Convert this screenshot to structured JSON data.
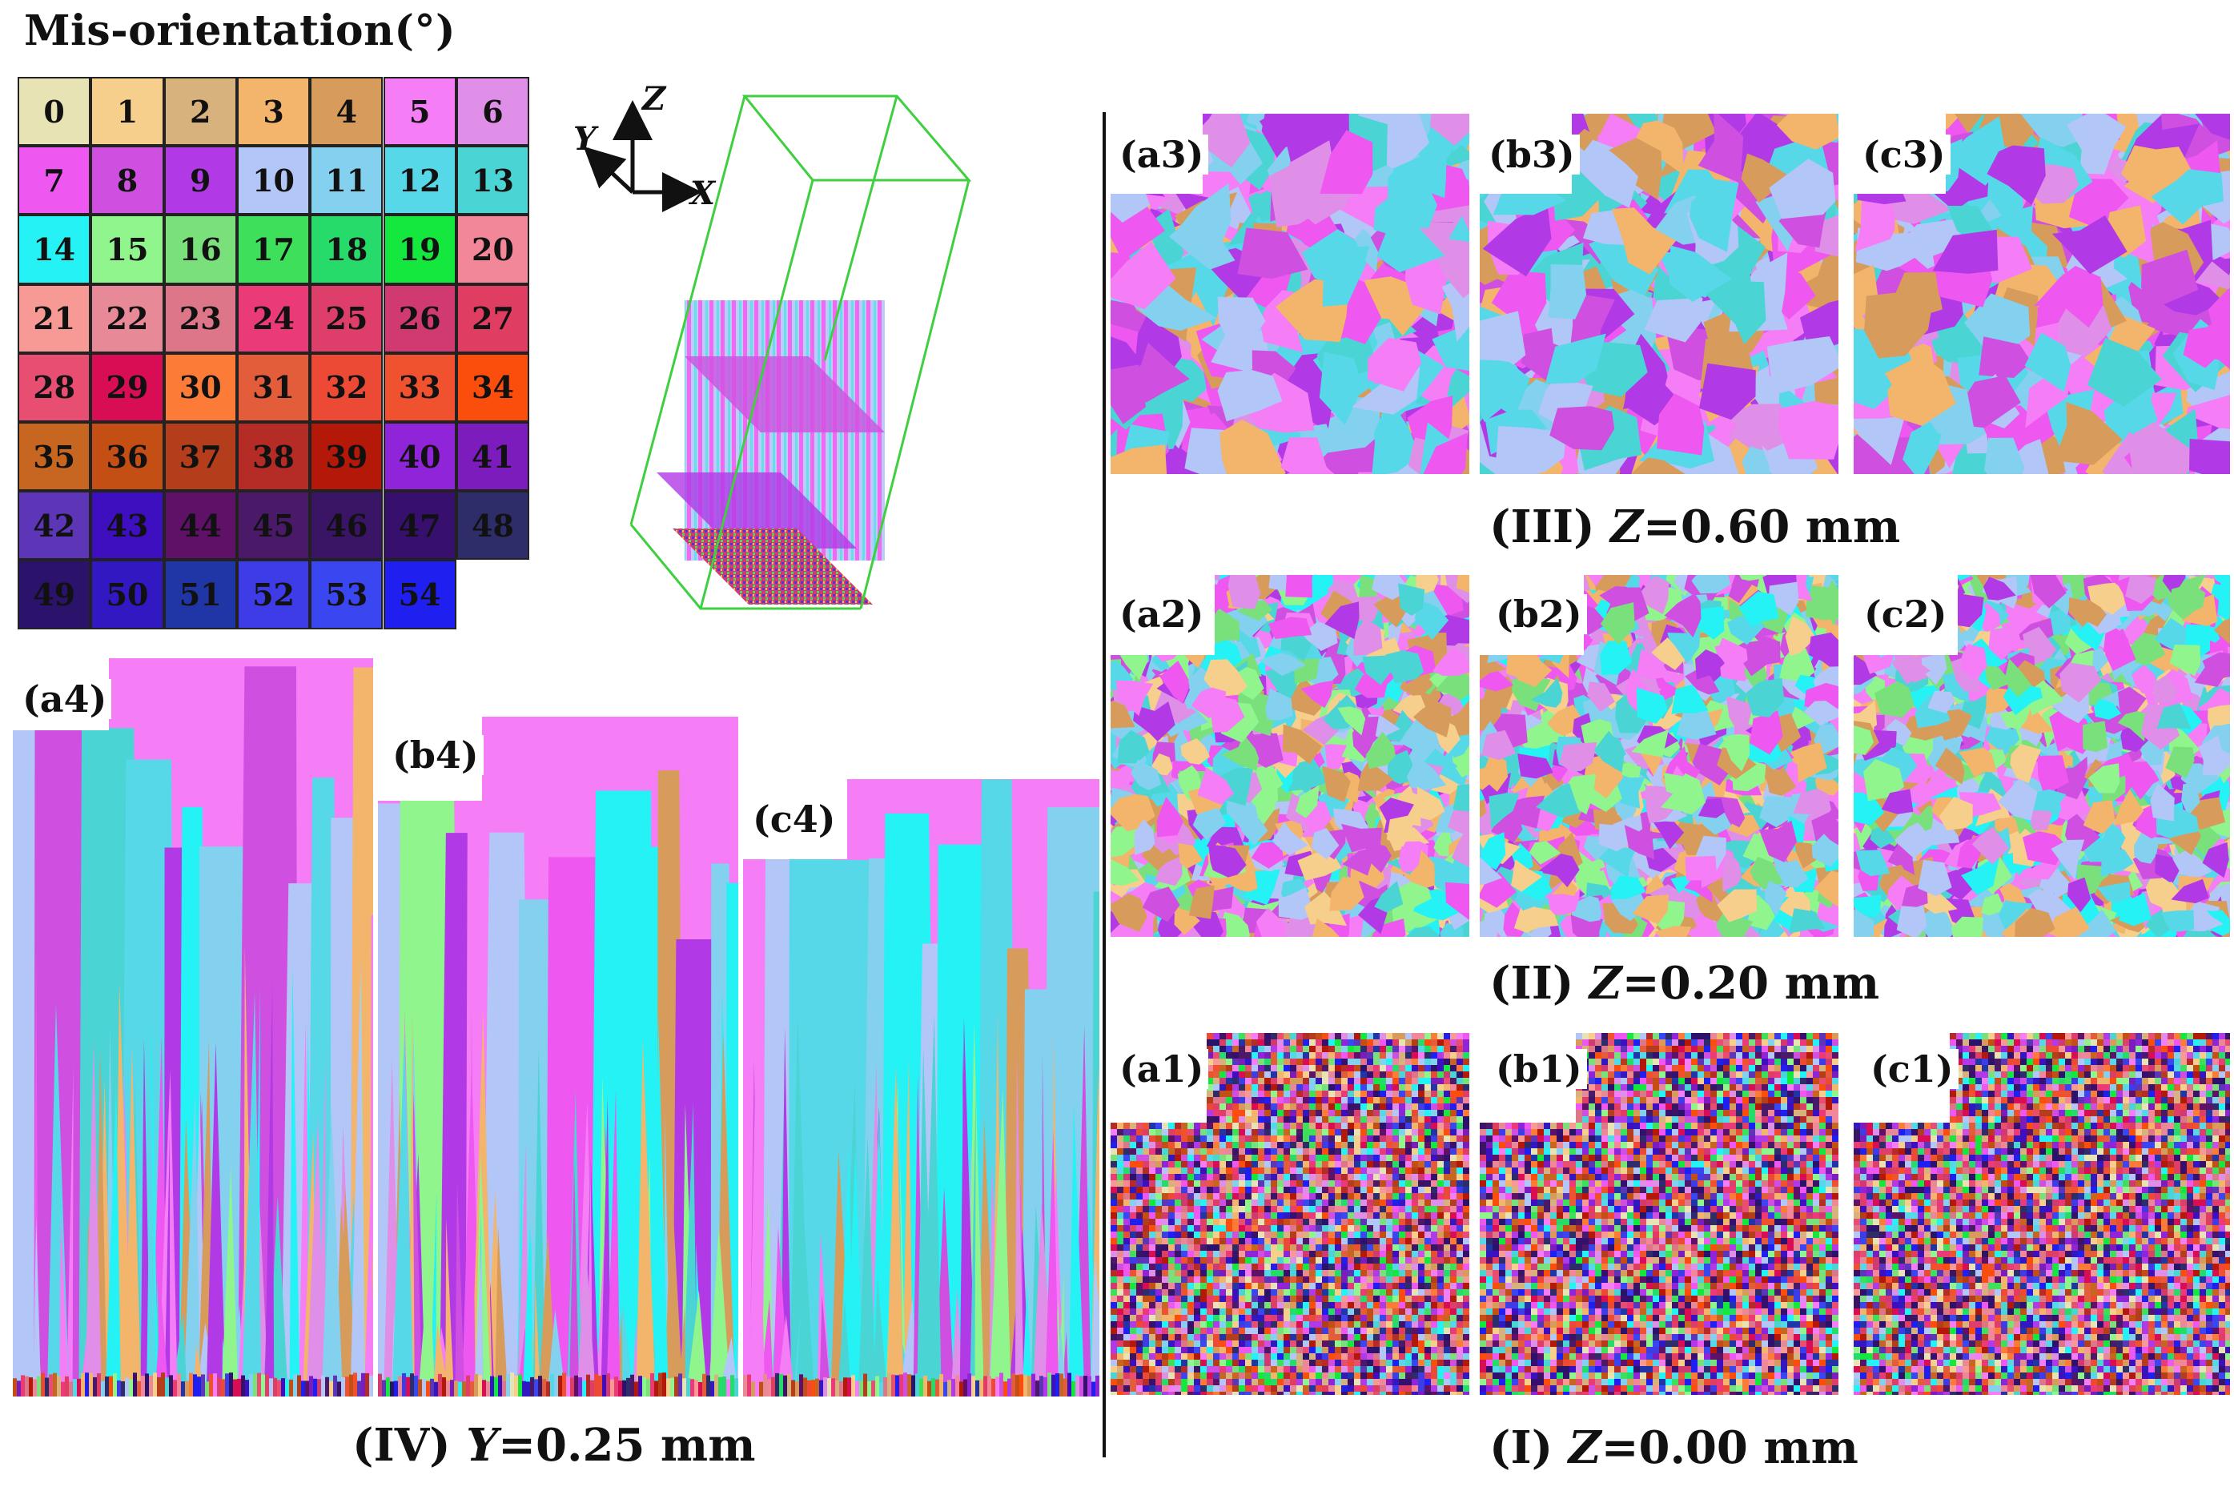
{
  "figure": {
    "legend": {
      "title": "Mis-orientation(°)",
      "cells": [
        {
          "label": "0",
          "color": "#e8e3b4"
        },
        {
          "label": "1",
          "color": "#f7cf8c"
        },
        {
          "label": "2",
          "color": "#d8b27d"
        },
        {
          "label": "3",
          "color": "#f3b46c"
        },
        {
          "label": "4",
          "color": "#d79b5b"
        },
        {
          "label": "5",
          "color": "#f57ef7"
        },
        {
          "label": "6",
          "color": "#e08fe8"
        },
        {
          "label": "7",
          "color": "#ee58f0"
        },
        {
          "label": "8",
          "color": "#cf50e0"
        },
        {
          "label": "9",
          "color": "#b23ae6"
        },
        {
          "label": "10",
          "color": "#b2c6f8"
        },
        {
          "label": "11",
          "color": "#84d0ef"
        },
        {
          "label": "12",
          "color": "#57d8e8"
        },
        {
          "label": "13",
          "color": "#4ad4d4"
        },
        {
          "label": "14",
          "color": "#24f2f4"
        },
        {
          "label": "15",
          "color": "#8ff58c"
        },
        {
          "label": "16",
          "color": "#79e07c"
        },
        {
          "label": "17",
          "color": "#3ee05b"
        },
        {
          "label": "18",
          "color": "#27db6a"
        },
        {
          "label": "19",
          "color": "#14e83e"
        },
        {
          "label": "20",
          "color": "#f3879a"
        },
        {
          "label": "21",
          "color": "#f79a96"
        },
        {
          "label": "22",
          "color": "#e78997"
        },
        {
          "label": "23",
          "color": "#de7689"
        },
        {
          "label": "24",
          "color": "#ea3b78"
        },
        {
          "label": "25",
          "color": "#dd3e6a"
        },
        {
          "label": "26",
          "color": "#d03a70"
        },
        {
          "label": "27",
          "color": "#df3d62"
        },
        {
          "label": "28",
          "color": "#e84e72"
        },
        {
          "label": "29",
          "color": "#d80d53"
        },
        {
          "label": "30",
          "color": "#fb7b37"
        },
        {
          "label": "31",
          "color": "#e45d3b"
        },
        {
          "label": "32",
          "color": "#ec4a35"
        },
        {
          "label": "33",
          "color": "#f0522f"
        },
        {
          "label": "34",
          "color": "#fb4d0c"
        },
        {
          "label": "35",
          "color": "#c76621"
        },
        {
          "label": "36",
          "color": "#c44f14"
        },
        {
          "label": "37",
          "color": "#b43d1c"
        },
        {
          "label": "38",
          "color": "#b52b25"
        },
        {
          "label": "39",
          "color": "#b41808"
        },
        {
          "label": "40",
          "color": "#9024d8"
        },
        {
          "label": "41",
          "color": "#7d1cbd"
        },
        {
          "label": "42",
          "color": "#5d36b8"
        },
        {
          "label": "43",
          "color": "#3d0fbf"
        },
        {
          "label": "44",
          "color": "#5f1067"
        },
        {
          "label": "45",
          "color": "#4a1a68"
        },
        {
          "label": "46",
          "color": "#3a1465"
        },
        {
          "label": "47",
          "color": "#37106d"
        },
        {
          "label": "48",
          "color": "#2f2c6a"
        },
        {
          "label": "49",
          "color": "#2b126a"
        },
        {
          "label": "50",
          "color": "#3218c1"
        },
        {
          "label": "51",
          "color": "#2136a6"
        },
        {
          "label": "52",
          "color": "#3d3ce7"
        },
        {
          "label": "53",
          "color": "#3a46f0"
        },
        {
          "label": "54",
          "color": "#1f1fef"
        }
      ]
    },
    "axes": {
      "z": "Z",
      "y": "Y",
      "x": "X"
    },
    "panels": {
      "a4": "(a4)",
      "b4": "(b4)",
      "c4": "(c4)",
      "a3": "(a3)",
      "b3": "(b3)",
      "c3": "(c3)",
      "a2": "(a2)",
      "b2": "(b2)",
      "c2": "(c2)",
      "a1": "(a1)",
      "b1": "(b1)",
      "c1": "(c1)"
    },
    "captions": {
      "iv": {
        "prefix": "(IV) ",
        "var": "Y",
        "value": "=0.25 mm"
      },
      "iii": {
        "prefix": "(III) ",
        "var": "Z",
        "value": "=0.60 mm"
      },
      "ii": {
        "prefix": "(II) ",
        "var": "Z",
        "value": "=0.20 mm"
      },
      "i": {
        "prefix": "(I) ",
        "var": "Z",
        "value": "=0.00 mm"
      }
    }
  }
}
